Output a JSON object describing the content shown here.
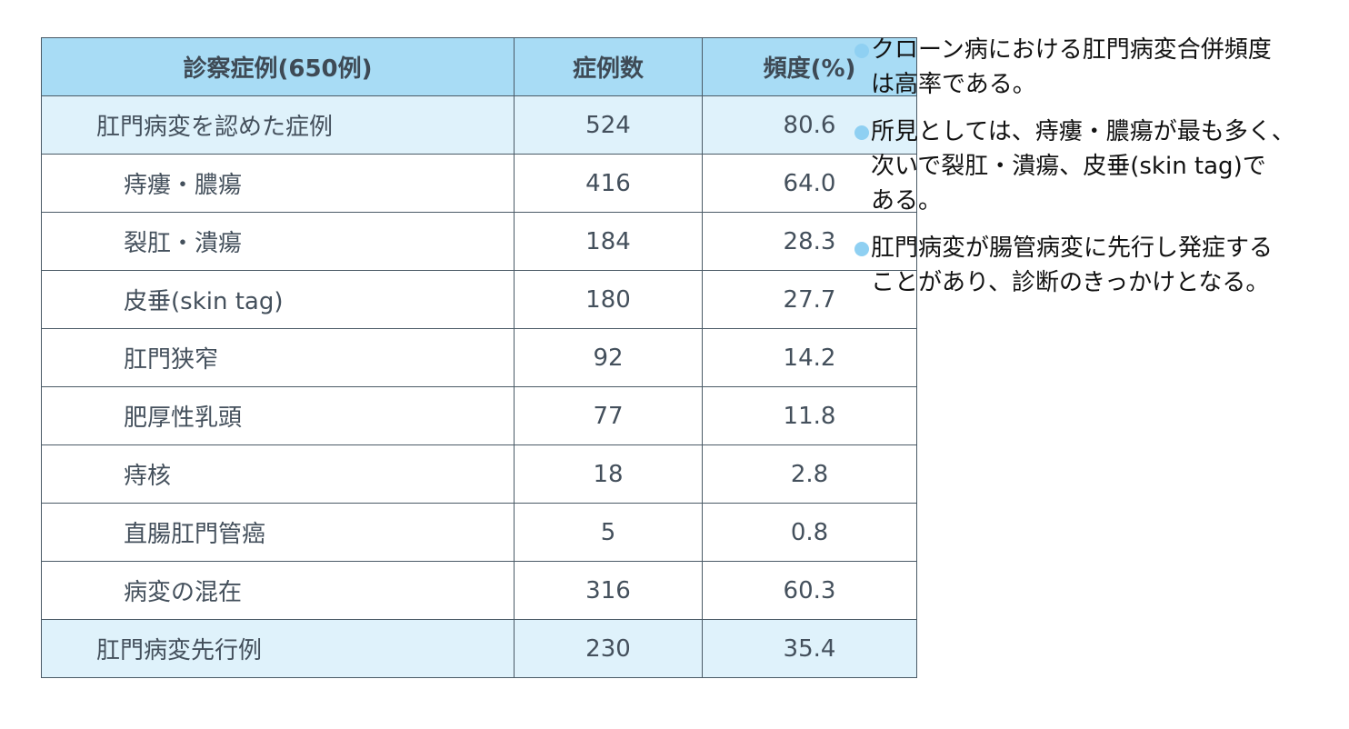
{
  "table": {
    "headers": [
      "診察症例(650例)",
      "症例数",
      "頻度(%)"
    ],
    "rows": [
      {
        "name": "肛門病変を認めた症例",
        "count": "524",
        "freq": "80.6",
        "highlight": true
      },
      {
        "name": "痔瘻・膿瘍",
        "count": "416",
        "freq": "64.0",
        "highlight": false
      },
      {
        "name": "裂肛・潰瘍",
        "count": "184",
        "freq": "28.3",
        "highlight": false
      },
      {
        "name": "皮垂(skin tag)",
        "count": "180",
        "freq": "27.7",
        "highlight": false
      },
      {
        "name": "肛門狭窄",
        "count": "92",
        "freq": "14.2",
        "highlight": false
      },
      {
        "name": "肥厚性乳頭",
        "count": "77",
        "freq": "11.8",
        "highlight": false
      },
      {
        "name": "痔核",
        "count": "18",
        "freq": "2.8",
        "highlight": false
      },
      {
        "name": "直腸肛門管癌",
        "count": "5",
        "freq": "0.8",
        "highlight": false
      },
      {
        "name": "病変の混在",
        "count": "316",
        "freq": "60.3",
        "highlight": false
      },
      {
        "name": "肛門病変先行例",
        "count": "230",
        "freq": "35.4",
        "highlight": true
      }
    ],
    "colors": {
      "header_bg": "#a8dcf5",
      "highlight_bg": "#dff2fb",
      "text": "#44505c",
      "border": "#4a5a66"
    }
  },
  "notes": [
    {
      "lines": [
        "クローン病における肛門病変合併頻度",
        "は高率である。"
      ]
    },
    {
      "lines": [
        "所見としては、痔瘻・膿瘍が最も多く、",
        "次いで裂肛・潰瘍、皮垂(skin tag)で",
        "ある。"
      ]
    },
    {
      "lines": [
        "肛門病変が腸管病変に先行し発症する",
        "ことがあり、診断のきっかけとなる。"
      ]
    }
  ],
  "bullet_color": "#8fd0f2"
}
